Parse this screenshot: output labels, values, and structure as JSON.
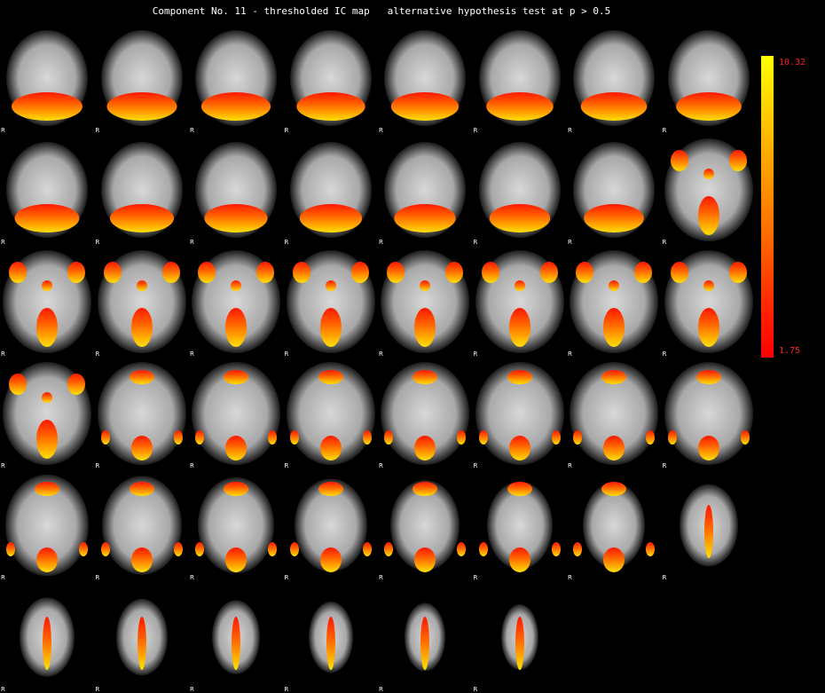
{
  "title": "Component No. 11 - thresholded IC map   alternative hypothesis test at p > 0.5",
  "orientation_label": "R",
  "colorbar": {
    "max": "10.32",
    "min": "1.75"
  },
  "colors": {
    "background": "#000000",
    "activation_low": "#ff0000",
    "activation_high": "#ffff00"
  },
  "grid": {
    "rows": 6,
    "columns": 8,
    "slice_count": 46
  }
}
